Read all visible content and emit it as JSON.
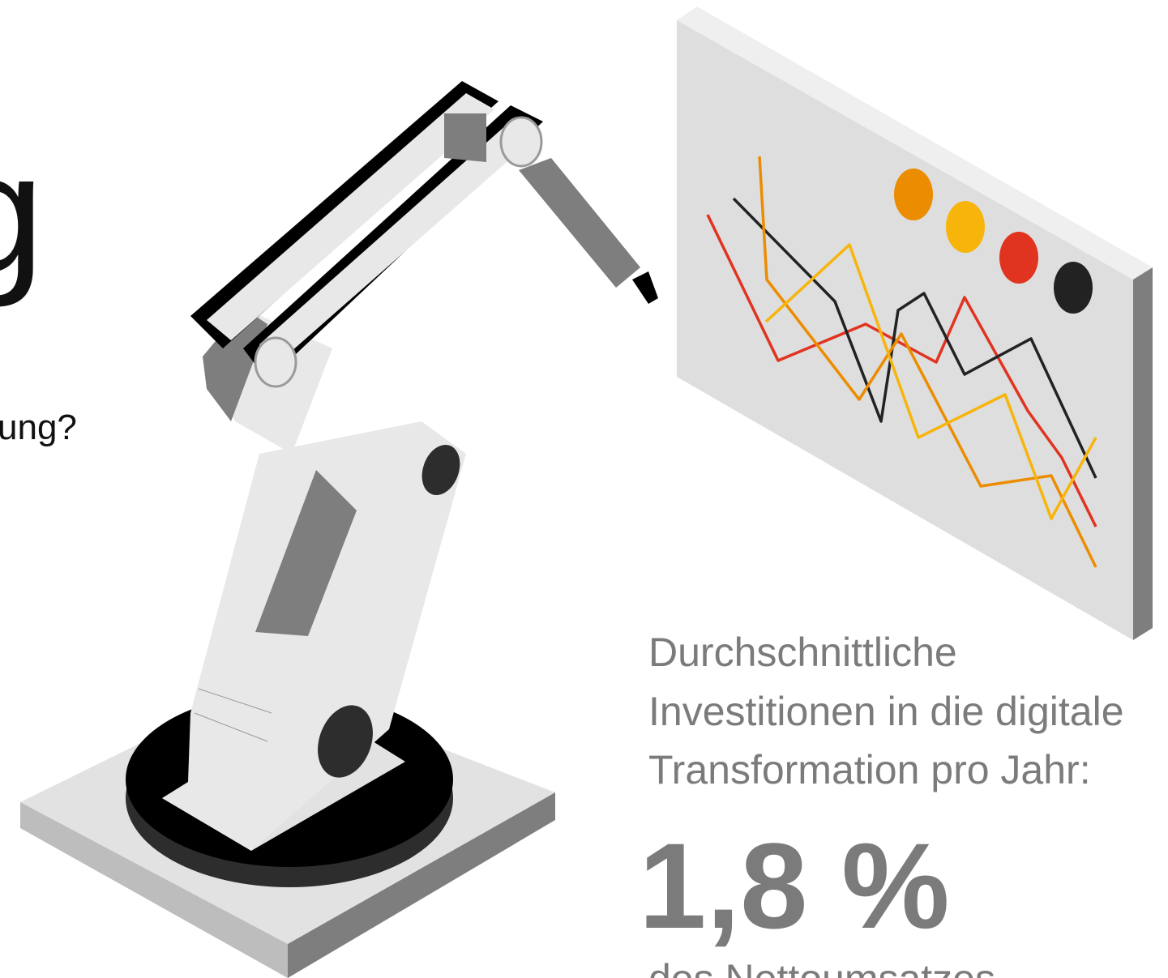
{
  "header": {
    "title_fragment": "g",
    "subtitle_fragment": "ung?"
  },
  "stat": {
    "label_lines": [
      "Durchschnittliche",
      "Investitionen in die digitale",
      "Transformation pro Jahr:"
    ],
    "value": "1,8 %",
    "caption": "des Nettoumsatzes"
  }
}
